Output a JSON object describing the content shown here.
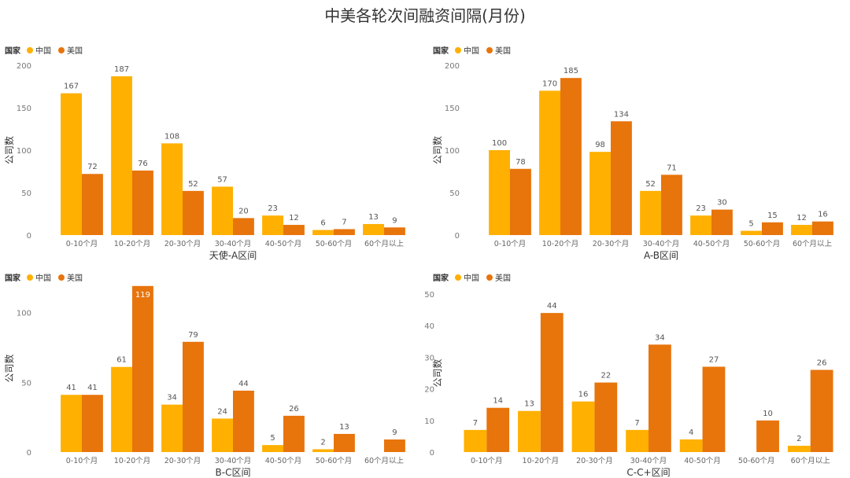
{
  "title": "中美各轮次间融资间隔(月份)",
  "colors": {
    "china": "#FFB000",
    "usa": "#E8740C"
  },
  "chart_data": [
    {
      "type": "bar",
      "xlabel": "天使-A区间",
      "ylabel": "公司数",
      "legend_title": "国家",
      "legend_position": "top-left",
      "ylim": [
        0,
        200
      ],
      "yticks": [
        0,
        50,
        100,
        150,
        200
      ],
      "categories": [
        "0-10个月",
        "10-20个月",
        "20-30个月",
        "30-40个月",
        "40-50个月",
        "50-60个月",
        "60个月以上"
      ],
      "series": [
        {
          "name": "中国",
          "values": [
            167,
            187,
            108,
            57,
            23,
            6,
            13
          ]
        },
        {
          "name": "美国",
          "values": [
            72,
            76,
            52,
            20,
            12,
            7,
            9
          ]
        }
      ]
    },
    {
      "type": "bar",
      "xlabel": "A-B区间",
      "ylabel": "公司数",
      "legend_title": "国家",
      "legend_position": "top-left",
      "ylim": [
        0,
        200
      ],
      "yticks": [
        0,
        50,
        100,
        150,
        200
      ],
      "categories": [
        "0-10个月",
        "10-20个月",
        "20-30个月",
        "30-40个月",
        "40-50个月",
        "50-60个月",
        "60个月以上"
      ],
      "series": [
        {
          "name": "中国",
          "values": [
            100,
            170,
            98,
            52,
            23,
            5,
            12
          ]
        },
        {
          "name": "美国",
          "values": [
            78,
            185,
            134,
            71,
            30,
            15,
            16
          ]
        }
      ]
    },
    {
      "type": "bar",
      "xlabel": "B-C区间",
      "ylabel": "公司数",
      "legend_title": "国家",
      "legend_position": "top-left",
      "ylim": [
        0,
        120
      ],
      "yticks": [
        0,
        50,
        100
      ],
      "categories": [
        "0-10个月",
        "10-20个月",
        "20-30个月",
        "30-40个月",
        "40-50个月",
        "50-60个月",
        "60个月以上"
      ],
      "series": [
        {
          "name": "中国",
          "values": [
            41,
            61,
            34,
            24,
            5,
            2,
            null
          ]
        },
        {
          "name": "美国",
          "values": [
            41,
            119,
            79,
            44,
            26,
            13,
            9
          ]
        }
      ]
    },
    {
      "type": "bar",
      "xlabel": "C-C+区间",
      "ylabel": "公司数",
      "legend_title": "国家",
      "legend_position": "top-left",
      "ylim": [
        0,
        50
      ],
      "yticks": [
        0,
        10,
        20,
        30,
        40,
        50
      ],
      "categories": [
        "0-10个月",
        "10-20个月",
        "20-30个月",
        "30-40个月",
        "40-50个月",
        "50-60个月",
        "60个月以上"
      ],
      "series": [
        {
          "name": "中国",
          "values": [
            7,
            13,
            16,
            7,
            4,
            null,
            2
          ]
        },
        {
          "name": "美国",
          "values": [
            14,
            44,
            22,
            34,
            27,
            10,
            26
          ]
        }
      ]
    }
  ]
}
